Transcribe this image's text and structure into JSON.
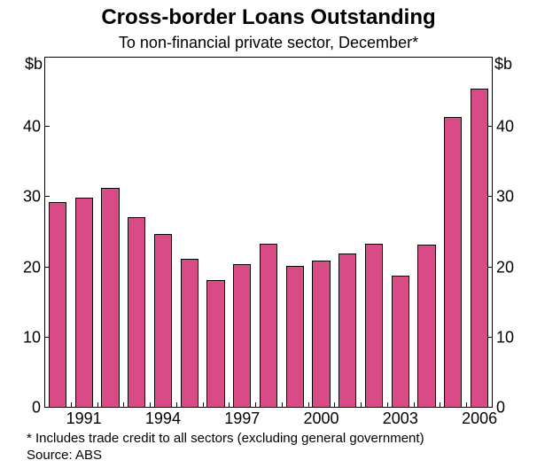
{
  "chart": {
    "type": "bar",
    "title": "Cross-border Loans Outstanding",
    "title_fontsize": 24,
    "subtitle": "To non-financial private sector, December*",
    "subtitle_fontsize": 18,
    "background_color": "#ffffff",
    "plot_border_color": "#000000",
    "bar_color": "#d94b87",
    "bar_border_color": "#000000",
    "text_color": "#000000",
    "years": [
      1990,
      1991,
      1992,
      1993,
      1994,
      1995,
      1996,
      1997,
      1998,
      1999,
      2000,
      2001,
      2002,
      2003,
      2004,
      2005,
      2006
    ],
    "values": [
      29.3,
      30.0,
      31.4,
      27.1,
      24.8,
      21.2,
      18.2,
      20.4,
      23.4,
      20.2,
      21.0,
      21.9,
      23.3,
      18.8,
      23.2,
      41.5,
      45.6
    ],
    "ylim": [
      0,
      50
    ],
    "yticks": [
      0,
      10,
      20,
      30,
      40
    ],
    "ytick_fontsize": 18,
    "y_unit": "$b",
    "xticks_shown": [
      1991,
      1994,
      1997,
      2000,
      2003,
      2006
    ],
    "xtick_fontsize": 18,
    "bar_width_ratio": 0.68,
    "footnote1": "*   Includes trade credit to all sectors (excluding general government)",
    "footnote2": "Source: ABS",
    "footnote_fontsize": 15
  }
}
